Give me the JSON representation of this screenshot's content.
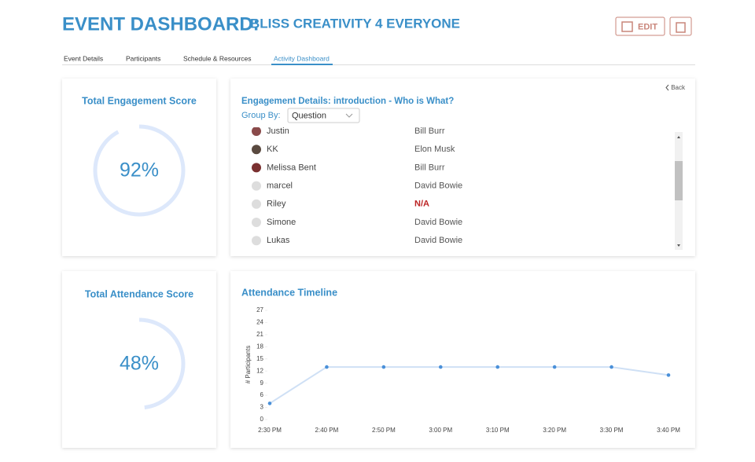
{
  "header": {
    "title": "EVENT DASHBOARD:",
    "subtitle": "BLISS CREATIVITY 4 EVERYONE",
    "edit": "EDIT"
  },
  "tabs": [
    "Event Details",
    "Participants",
    "Schedule & Resources",
    "Activity Dashboard"
  ],
  "engagement": {
    "title": "Total Engagement Score",
    "value": 92,
    "value_label": "92%"
  },
  "details": {
    "back": "Back",
    "title": "Engagement Details: introduction - Who is What?",
    "group_by": "Group By:",
    "group_value": "Question",
    "rows": [
      [
        "Justin",
        "Bill Burr"
      ],
      [
        "KK",
        "Elon Musk"
      ],
      [
        "Melissa Bent",
        "Bill Burr"
      ],
      [
        "marcel",
        "David Bowie"
      ],
      [
        "Riley",
        "N/A"
      ],
      [
        "Simone",
        "David Bowie"
      ],
      [
        "Lukas",
        "David Bowie"
      ]
    ]
  },
  "attendance": {
    "title": "Total Attendance Score",
    "value": 48,
    "value_label": "48%"
  },
  "timeline": {
    "type": "line",
    "title": "Attendance Timeline",
    "y_label": "# Participants",
    "x": [
      "2:30 PM",
      "2:40 PM",
      "2:50 PM",
      "3:00 PM",
      "3:10 PM",
      "3:20 PM",
      "3:30 PM",
      "3:40 PM"
    ],
    "values": [
      4,
      13,
      13,
      13,
      13,
      13,
      13,
      11
    ],
    "color": "#4a90d9",
    "line_color": "#cfe0f5",
    "ylim": [
      0,
      27
    ],
    "yticks": [
      0,
      3,
      6,
      9,
      12,
      15,
      18,
      21,
      24,
      27
    ]
  }
}
